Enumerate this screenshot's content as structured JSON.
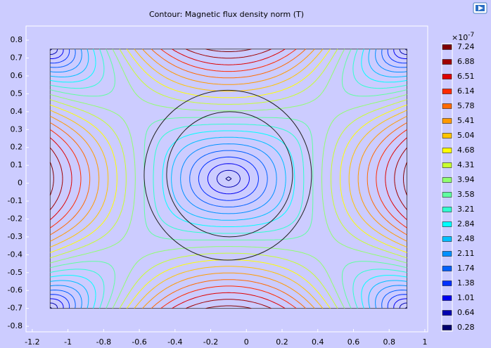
{
  "chart_data": {
    "type": "contour",
    "title": "Contour: Magnetic flux density norm (T)",
    "xlim": [
      -1.235,
      1.016
    ],
    "xticks": [
      -1.2,
      -1,
      -0.8,
      -0.6,
      -0.4,
      -0.2,
      0,
      0.2,
      0.4,
      0.6,
      0.8,
      1
    ],
    "ylim": [
      -0.831,
      0.879
    ],
    "yticks": [
      -0.8,
      -0.7,
      -0.6,
      -0.5,
      -0.4,
      -0.3,
      -0.2,
      -0.1,
      0,
      0.1,
      0.2,
      0.3,
      0.4,
      0.5,
      0.6,
      0.7,
      0.8
    ],
    "colorbar_multiplier": "×10",
    "colorbar_exponent": "-7",
    "levels": [
      7.24,
      6.88,
      6.51,
      6.14,
      5.78,
      5.41,
      5.04,
      4.68,
      4.31,
      3.94,
      3.58,
      3.21,
      2.84,
      2.48,
      2.11,
      1.74,
      1.38,
      1.01,
      0.64,
      0.28
    ],
    "colors": [
      "#800000",
      "#a00000",
      "#dd0000",
      "#ff2a00",
      "#ff6a00",
      "#ff9a00",
      "#ffc400",
      "#ffff00",
      "#c8ff30",
      "#90ff70",
      "#60ffa0",
      "#30ffd0",
      "#00ffff",
      "#00c0ff",
      "#0090ff",
      "#0060ff",
      "#0030ff",
      "#0000f0",
      "#0000b0",
      "#000070"
    ]
  }
}
